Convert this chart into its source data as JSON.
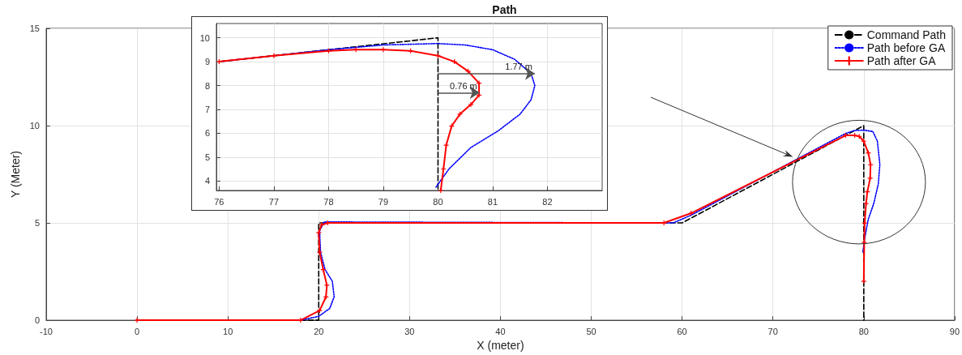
{
  "chart_data": [
    {
      "type": "line",
      "title": "Path",
      "xlabel": "X (meter)",
      "ylabel": "Y (Meter)",
      "xlim": [
        -10,
        90
      ],
      "ylim": [
        0,
        15
      ],
      "xticks": [
        -10,
        0,
        10,
        20,
        30,
        40,
        50,
        60,
        70,
        80,
        90
      ],
      "yticks": [
        0,
        5,
        10,
        15
      ],
      "grid": true,
      "legend": "top right",
      "series": [
        {
          "name": "Command Path",
          "color": "#000000",
          "line_style": "dashed",
          "marker": "none",
          "x": [
            0,
            20,
            20,
            60,
            80,
            80
          ],
          "values": [
            0,
            0,
            5,
            5,
            10,
            0
          ]
        },
        {
          "name": "Path before GA",
          "color": "#0000ff",
          "line_style": "dotted",
          "marker": "none",
          "x": [
            0,
            18,
            20,
            21.2,
            21.7,
            21.5,
            20.7,
            20.2,
            20.1,
            20.6,
            22,
            59,
            61,
            78,
            79,
            80,
            81,
            81.5,
            81.77,
            81.6,
            81.1,
            80.5,
            80.1,
            79.9
          ],
          "values": [
            0,
            0,
            0.2,
            0.6,
            1.2,
            2,
            2.6,
            3.5,
            4.6,
            5.05,
            5.05,
            5,
            5.4,
            9.6,
            9.75,
            9.77,
            9.7,
            9.2,
            8,
            7,
            6,
            5.2,
            4.2,
            3.5
          ]
        },
        {
          "name": "Path after GA",
          "color": "#ff0000",
          "line_style": "solid",
          "marker": "cross",
          "x": [
            0,
            18,
            20.1,
            20.8,
            20.9,
            20.5,
            20.1,
            20,
            20.3,
            21,
            58,
            61,
            78,
            79,
            79.5,
            80,
            80.5,
            80.75,
            80.7,
            80.4,
            80.25,
            80.1,
            80.05,
            80
          ],
          "values": [
            0,
            0,
            0.5,
            1.2,
            1.8,
            2.6,
            3.5,
            4.5,
            4.9,
            5,
            5,
            5.5,
            9.5,
            9.5,
            9.45,
            9.2,
            8.6,
            8,
            7.3,
            6.6,
            6,
            5,
            4,
            2
          ]
        }
      ]
    },
    {
      "type": "line",
      "xlim": [
        75.95,
        83
      ],
      "ylim": [
        3.6,
        10.6
      ],
      "xticks": [
        76,
        77,
        78,
        79,
        80,
        81,
        82
      ],
      "yticks": [
        4,
        5,
        6,
        7,
        8,
        9,
        10
      ],
      "grid": true,
      "annotations": [
        {
          "text": "1.77 m",
          "x": 81.77,
          "y": 8.5
        },
        {
          "text": "0.76 m",
          "x": 80.76,
          "y": 7.7
        }
      ],
      "series": [
        {
          "color": "#000000",
          "line_style": "dashed",
          "marker": "none",
          "x": [
            76,
            80,
            80
          ],
          "values": [
            9,
            10,
            3.6
          ]
        },
        {
          "color": "#0000ff",
          "line_style": "dotted",
          "marker": "none",
          "x": [
            76,
            77,
            78,
            79,
            80,
            80.5,
            81,
            81.4,
            81.7,
            81.77,
            81.7,
            81.5,
            81.1,
            80.6,
            80.2,
            79.95
          ],
          "values": [
            9,
            9.25,
            9.5,
            9.7,
            9.76,
            9.7,
            9.5,
            9.1,
            8.5,
            8,
            7.4,
            6.8,
            6.1,
            5.4,
            4.5,
            3.7
          ]
        },
        {
          "color": "#ff0000",
          "line_style": "solid",
          "marker": "cross",
          "x": [
            76,
            77,
            78,
            78.5,
            79,
            79.5,
            80,
            80.3,
            80.55,
            80.75,
            80.75,
            80.6,
            80.4,
            80.25,
            80.15,
            80.1,
            80.05
          ],
          "values": [
            9,
            9.25,
            9.45,
            9.5,
            9.5,
            9.45,
            9.25,
            9,
            8.6,
            8.1,
            7.6,
            7.2,
            6.8,
            6.3,
            5.5,
            4.5,
            3.6
          ]
        }
      ]
    }
  ]
}
